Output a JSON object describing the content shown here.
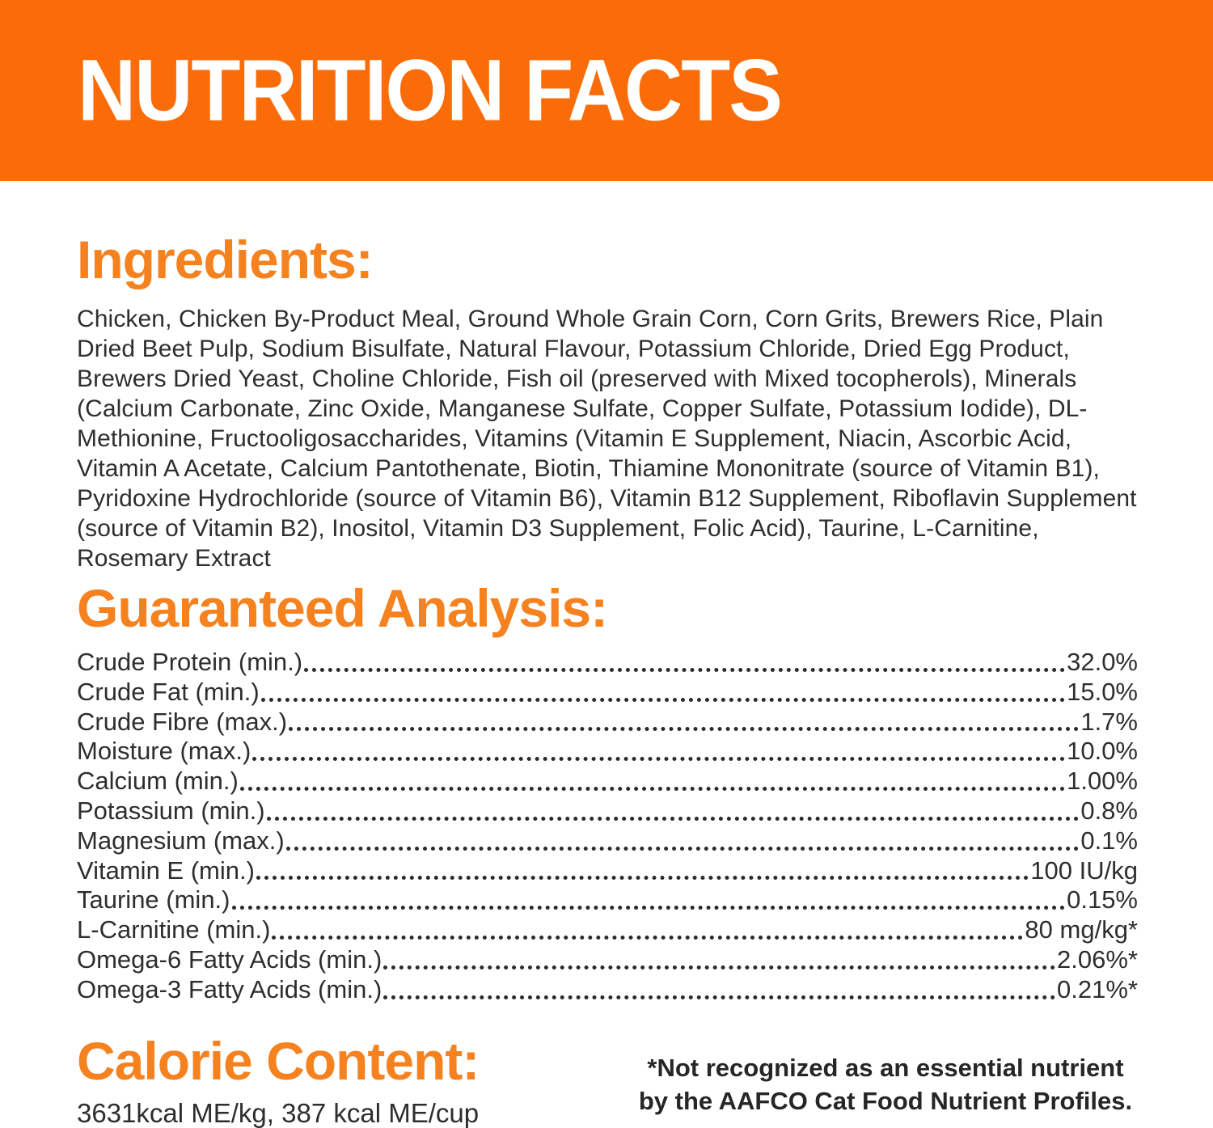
{
  "banner": {
    "title": "NUTRITION FACTS",
    "bg_color": "#fa6c08",
    "text_color": "#ffffff"
  },
  "accent_color": "#f5821f",
  "ingredients": {
    "heading": "Ingredients:",
    "text": "Chicken, Chicken By-Product Meal, Ground Whole Grain Corn, Corn Grits, Brewers Rice, Plain Dried Beet Pulp, Sodium Bisulfate, Natural Flavour, Potassium Chloride, Dried Egg Product, Brewers Dried Yeast, Choline Chloride, Fish oil (preserved with Mixed tocopherols), Minerals (Calcium Carbonate, Zinc Oxide, Manganese Sulfate, Copper Sulfate, Potassium Iodide), DL-Methionine, Fructooligosaccharides, Vitamins (Vitamin E Supplement, Niacin, Ascorbic Acid, Vitamin A Acetate, Calcium Pantothenate, Biotin, Thiamine Mononitrate (source of Vitamin B1), Pyridoxine Hydrochloride (source of Vitamin B6), Vitamin B12 Supplement, Riboflavin Supplement (source of Vitamin B2), Inositol, Vitamin D3 Supplement, Folic Acid), Taurine, L-Carnitine, Rosemary Extract"
  },
  "guaranteed_analysis": {
    "heading": "Guaranteed Analysis:",
    "rows": [
      {
        "label": "Crude Protein (min.)",
        "value": "32.0%"
      },
      {
        "label": "Crude Fat (min.)",
        "value": "15.0%"
      },
      {
        "label": "Crude Fibre (max.)",
        "value": "1.7%"
      },
      {
        "label": "Moisture (max.)",
        "value": "10.0%"
      },
      {
        "label": "Calcium (min.)",
        "value": "1.00%"
      },
      {
        "label": "Potassium (min.)",
        "value": "0.8%"
      },
      {
        "label": "Magnesium (max.)",
        "value": "0.1%"
      },
      {
        "label": "Vitamin E (min.)",
        "value": "100 IU/kg"
      },
      {
        "label": "Taurine (min.)",
        "value": "0.15%"
      },
      {
        "label": "L-Carnitine (min.)",
        "value": "80 mg/kg*"
      },
      {
        "label": "Omega-6 Fatty Acids (min.)",
        "value": "2.06%*"
      },
      {
        "label": "Omega-3 Fatty Acids (min.)",
        "value": "0.21%*"
      }
    ]
  },
  "calorie_content": {
    "heading": "Calorie Content:",
    "text": "3631kcal ME/kg, 387 kcal ME/cup"
  },
  "footnote": {
    "line1": "*Not recognized as an essential nutrient",
    "line2": "by the AAFCO Cat Food Nutrient Profiles."
  }
}
